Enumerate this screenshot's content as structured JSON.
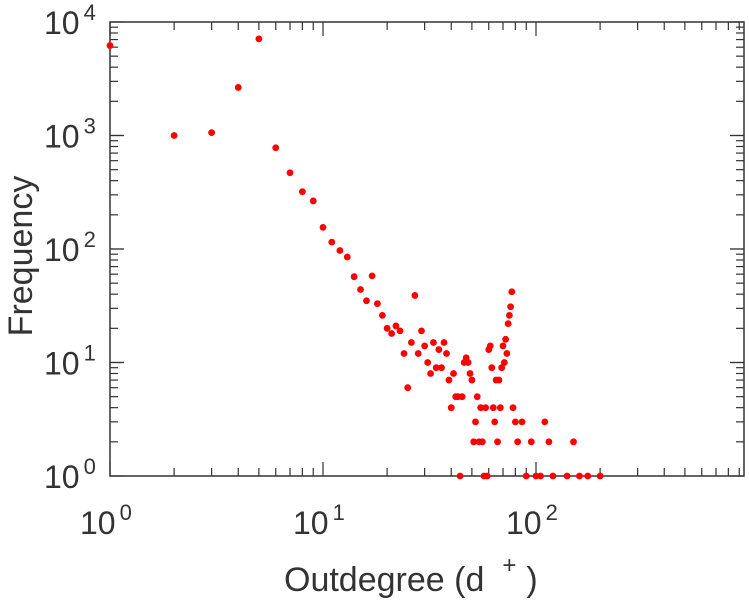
{
  "chart_data": {
    "type": "scatter",
    "xlabel": "Outdegree (d",
    "xlabel_sup": "+",
    "xlabel_close": ")",
    "ylabel": "Frequency",
    "xscale": "log",
    "yscale": "log",
    "xlim": [
      1,
      1000
    ],
    "ylim": [
      1,
      10000
    ],
    "x_ticks": [
      {
        "base": "10",
        "exp": "0",
        "value": 1
      },
      {
        "base": "10",
        "exp": "1",
        "value": 10
      },
      {
        "base": "10",
        "exp": "2",
        "value": 100
      }
    ],
    "y_ticks": [
      {
        "base": "10",
        "exp": "0",
        "value": 1
      },
      {
        "base": "10",
        "exp": "1",
        "value": 10
      },
      {
        "base": "10",
        "exp": "2",
        "value": 100
      },
      {
        "base": "10",
        "exp": "3",
        "value": 1000
      },
      {
        "base": "10",
        "exp": "4",
        "value": 10000
      }
    ],
    "grid": false,
    "legend": "none",
    "marker_color": "#ff0000",
    "axis_color": "#333333",
    "series": [
      {
        "points": [
          [
            1,
            6200
          ],
          [
            2,
            1000
          ],
          [
            3,
            1060
          ],
          [
            4,
            2650
          ],
          [
            5,
            7100
          ],
          [
            6,
            780
          ],
          [
            7,
            470
          ],
          [
            8,
            320
          ],
          [
            9,
            265
          ],
          [
            10,
            155
          ],
          [
            11,
            115
          ],
          [
            12,
            97
          ],
          [
            13,
            85
          ],
          [
            14,
            57
          ],
          [
            15,
            44
          ],
          [
            16,
            35
          ],
          [
            17,
            58
          ],
          [
            18,
            33
          ],
          [
            19,
            26
          ],
          [
            20,
            20
          ],
          [
            21,
            18
          ],
          [
            22,
            21
          ],
          [
            23,
            19
          ],
          [
            24,
            12
          ],
          [
            25,
            6
          ],
          [
            26,
            15
          ],
          [
            27,
            39
          ],
          [
            28,
            12
          ],
          [
            29,
            19
          ],
          [
            30,
            14
          ],
          [
            31,
            10
          ],
          [
            32,
            8
          ],
          [
            33,
            15
          ],
          [
            34,
            9
          ],
          [
            35,
            13
          ],
          [
            36,
            9
          ],
          [
            37,
            15
          ],
          [
            38,
            12
          ],
          [
            39,
            7
          ],
          [
            40,
            4
          ],
          [
            41,
            8
          ],
          [
            42,
            5
          ],
          [
            43,
            5
          ],
          [
            44,
            1
          ],
          [
            45,
            5
          ],
          [
            46,
            10
          ],
          [
            47,
            11
          ],
          [
            48,
            10
          ],
          [
            49,
            8
          ],
          [
            50,
            7
          ],
          [
            51,
            2
          ],
          [
            52,
            3
          ],
          [
            53,
            5
          ],
          [
            54,
            2
          ],
          [
            55,
            4
          ],
          [
            56,
            2
          ],
          [
            57,
            1
          ],
          [
            58,
            4
          ],
          [
            59,
            1
          ],
          [
            60,
            13
          ],
          [
            61,
            14
          ],
          [
            62,
            9
          ],
          [
            63,
            4
          ],
          [
            64,
            3
          ],
          [
            65,
            7
          ],
          [
            66,
            2
          ],
          [
            67,
            7
          ],
          [
            68,
            4
          ],
          [
            69,
            9
          ],
          [
            70,
            14
          ],
          [
            71,
            10
          ],
          [
            72,
            16
          ],
          [
            73,
            12
          ],
          [
            74,
            22
          ],
          [
            75,
            26
          ],
          [
            76,
            31
          ],
          [
            77,
            42
          ],
          [
            78,
            4
          ],
          [
            80,
            3
          ],
          [
            82,
            2
          ],
          [
            86,
            3
          ],
          [
            90,
            1
          ],
          [
            95,
            2
          ],
          [
            100,
            1
          ],
          [
            105,
            1
          ],
          [
            110,
            3
          ],
          [
            115,
            2
          ],
          [
            120,
            1
          ],
          [
            140,
            1
          ],
          [
            150,
            2
          ],
          [
            160,
            1
          ],
          [
            175,
            1
          ],
          [
            200,
            1
          ]
        ]
      }
    ]
  }
}
